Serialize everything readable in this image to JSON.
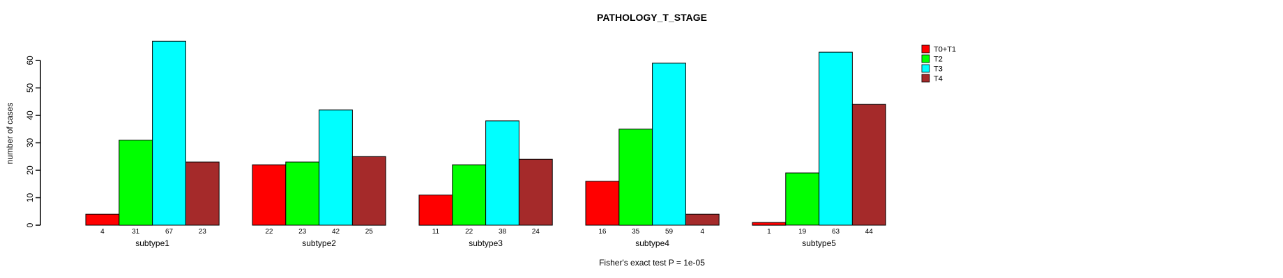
{
  "chart_data": {
    "type": "bar",
    "title": "PATHOLOGY_T_STAGE",
    "ylabel": "number of cases",
    "xlabel": "",
    "footer": "Fisher's exact test P = 1e-05",
    "categories": [
      "subtype1",
      "subtype2",
      "subtype3",
      "subtype4",
      "subtype5"
    ],
    "series": [
      {
        "name": "T0+T1",
        "color": "#FF0000",
        "values": [
          4,
          22,
          11,
          16,
          1
        ]
      },
      {
        "name": "T2",
        "color": "#00FF00",
        "values": [
          31,
          23,
          22,
          35,
          19
        ]
      },
      {
        "name": "T3",
        "color": "#00FFFF",
        "values": [
          67,
          42,
          38,
          59,
          63
        ]
      },
      {
        "name": "T4",
        "color": "#A52A2A",
        "values": [
          23,
          25,
          24,
          4,
          44
        ]
      }
    ],
    "yticks": [
      0,
      10,
      20,
      30,
      40,
      50,
      60
    ],
    "ylim": [
      0,
      67
    ],
    "bar_value_labels": true,
    "grid": false,
    "legend_position": "top-right",
    "bar_border_color": "#000000",
    "axis_color": "#000000"
  }
}
